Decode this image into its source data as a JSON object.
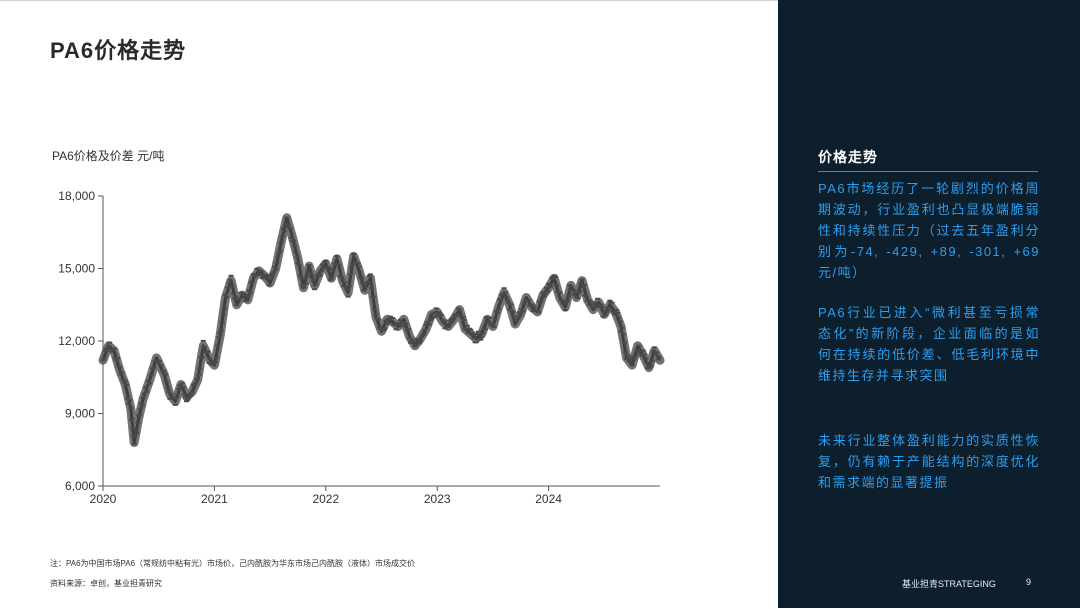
{
  "slide": {
    "title": "PA6价格走势",
    "chart_unit_label": "PA6价格及价差 元/吨",
    "note": "注：PA6为中国市场PA6（常规纺中粘有光）市场价，己内酰胺为华东市场己内酰胺（液体）市场成交价",
    "source": "资料来源：卓创，基业担青研究"
  },
  "sidebar": {
    "heading": "价格走势",
    "paragraphs": [
      "PA6市场经历了一轮剧烈的价格周期波动，行业盈利也凸显极端脆弱性和持续性压力（过去五年盈利分别为-74, -429, +89, -301, +69元/吨）",
      "PA6行业已进入“微利甚至亏损常态化”的新阶段，企业面临的是如何在持续的低价差、低毛利环境中维持生存并寻求突围",
      "未来行业整体盈利能力的实质性恢复，仍有赖于产能结构的深度优化和需求端的显著提振"
    ],
    "footer_brand": "基业担青STRATEGING",
    "page_number": "9"
  },
  "colors": {
    "series": "#5a5a5a",
    "sidebar_bg": "#0d1e2c",
    "sidebar_text": "#2b9ff0"
  },
  "chart_data": {
    "type": "line",
    "title": "",
    "xlabel": "",
    "ylabel": "PA6价格及价差 元/吨",
    "ylim": [
      6000,
      18000
    ],
    "yticks": [
      "6,000",
      "9,000",
      "12,000",
      "15,000",
      "18,000"
    ],
    "ytick_values": [
      6000,
      9000,
      12000,
      15000,
      18000
    ],
    "xlim": [
      2020.0,
      2025.0
    ],
    "xticks": [
      "2020",
      "2021",
      "2022",
      "2023",
      "2024"
    ],
    "xtick_values": [
      2020,
      2021,
      2022,
      2023,
      2024
    ],
    "grid": false,
    "series": [
      {
        "x": [
          2020.0,
          2020.05,
          2020.1,
          2020.15,
          2020.2,
          2020.25,
          2020.28,
          2020.32,
          2020.36,
          2020.42,
          2020.48,
          2020.55,
          2020.6,
          2020.65,
          2020.7,
          2020.75,
          2020.8,
          2020.85,
          2020.9,
          2020.95,
          2021.0,
          2021.05,
          2021.1,
          2021.15,
          2021.2,
          2021.25,
          2021.3,
          2021.35,
          2021.4,
          2021.45,
          2021.5,
          2021.55,
          2021.6,
          2021.65,
          2021.7,
          2021.75,
          2021.8,
          2021.85,
          2021.9,
          2021.95,
          2022.0,
          2022.05,
          2022.1,
          2022.15,
          2022.2,
          2022.25,
          2022.3,
          2022.35,
          2022.4,
          2022.45,
          2022.5,
          2022.55,
          2022.6,
          2022.65,
          2022.7,
          2022.75,
          2022.8,
          2022.85,
          2022.9,
          2022.95,
          2023.0,
          2023.05,
          2023.1,
          2023.15,
          2023.2,
          2023.25,
          2023.3,
          2023.35,
          2023.4,
          2023.45,
          2023.5,
          2023.55,
          2023.6,
          2023.65,
          2023.7,
          2023.75,
          2023.8,
          2023.85,
          2023.9,
          2023.95,
          2024.0,
          2024.05,
          2024.1,
          2024.15,
          2024.2,
          2024.25,
          2024.3,
          2024.35,
          2024.4,
          2024.45,
          2024.5,
          2024.55,
          2024.6,
          2024.65,
          2024.7,
          2024.75,
          2024.8,
          2024.85,
          2024.9,
          2024.95,
          2025.0
        ],
        "values": [
          11200,
          11800,
          11600,
          10800,
          10200,
          9200,
          7800,
          8800,
          9600,
          10400,
          11300,
          10600,
          9800,
          9500,
          10200,
          9700,
          9900,
          10400,
          11800,
          11300,
          11000,
          12200,
          13800,
          14500,
          13500,
          13900,
          13700,
          14600,
          14900,
          14700,
          14400,
          15000,
          16100,
          17100,
          16300,
          15400,
          14200,
          15100,
          14300,
          14900,
          15200,
          14600,
          15400,
          14500,
          14000,
          15500,
          14900,
          14100,
          14600,
          13000,
          12400,
          12900,
          12800,
          12600,
          12900,
          12200,
          11800,
          12100,
          12500,
          13100,
          13200,
          12800,
          12600,
          12900,
          13300,
          12500,
          12300,
          12100,
          12300,
          12900,
          12600,
          13400,
          14000,
          13500,
          12700,
          13100,
          13800,
          13400,
          13200,
          13900,
          14200,
          14600,
          13800,
          13400,
          14300,
          13800,
          14500,
          13700,
          13300,
          13600,
          13100,
          13500,
          13200,
          12600,
          11300,
          11000,
          11800,
          11400,
          10900,
          11600,
          11200
        ]
      }
    ]
  }
}
